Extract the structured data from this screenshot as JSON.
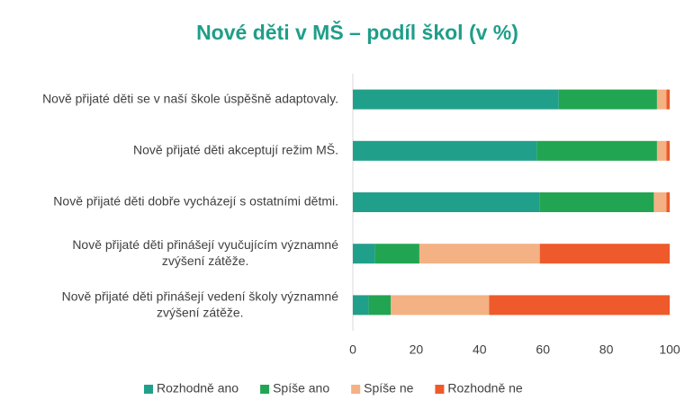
{
  "chart_data": {
    "type": "stacked_bar_horizontal",
    "title": "Nové děti v MŠ – podíl škol (v %)",
    "categories": [
      "Nově přijaté děti se v naší škole úspěšně adaptovaly.",
      "Nově přijaté děti akceptují režim MŠ.",
      "Nově přijaté děti dobře vycházejí s ostatními dětmi.",
      "Nově přijaté děti přinášejí vyučujícím významné zvýšení zátěže.",
      "Nově přijaté děti přinášejí vedení školy významné zvýšení zátěže."
    ],
    "series": [
      {
        "name": "Rozhodně ano",
        "color": "#20a08a",
        "values": [
          65,
          58,
          59,
          7,
          5
        ]
      },
      {
        "name": "Spíše ano",
        "color": "#22a552",
        "values": [
          31,
          38,
          36,
          14,
          7
        ]
      },
      {
        "name": "Spíše ne",
        "color": "#f4b183",
        "values": [
          3,
          3,
          4,
          38,
          31
        ]
      },
      {
        "name": "Rozhodně ne",
        "color": "#ee5a2b",
        "values": [
          1,
          1,
          1,
          41,
          57
        ]
      }
    ],
    "xlim": [
      0,
      100
    ],
    "xticks": [
      0,
      20,
      40,
      60,
      80,
      100
    ],
    "grid": false,
    "legend": "bottom"
  }
}
